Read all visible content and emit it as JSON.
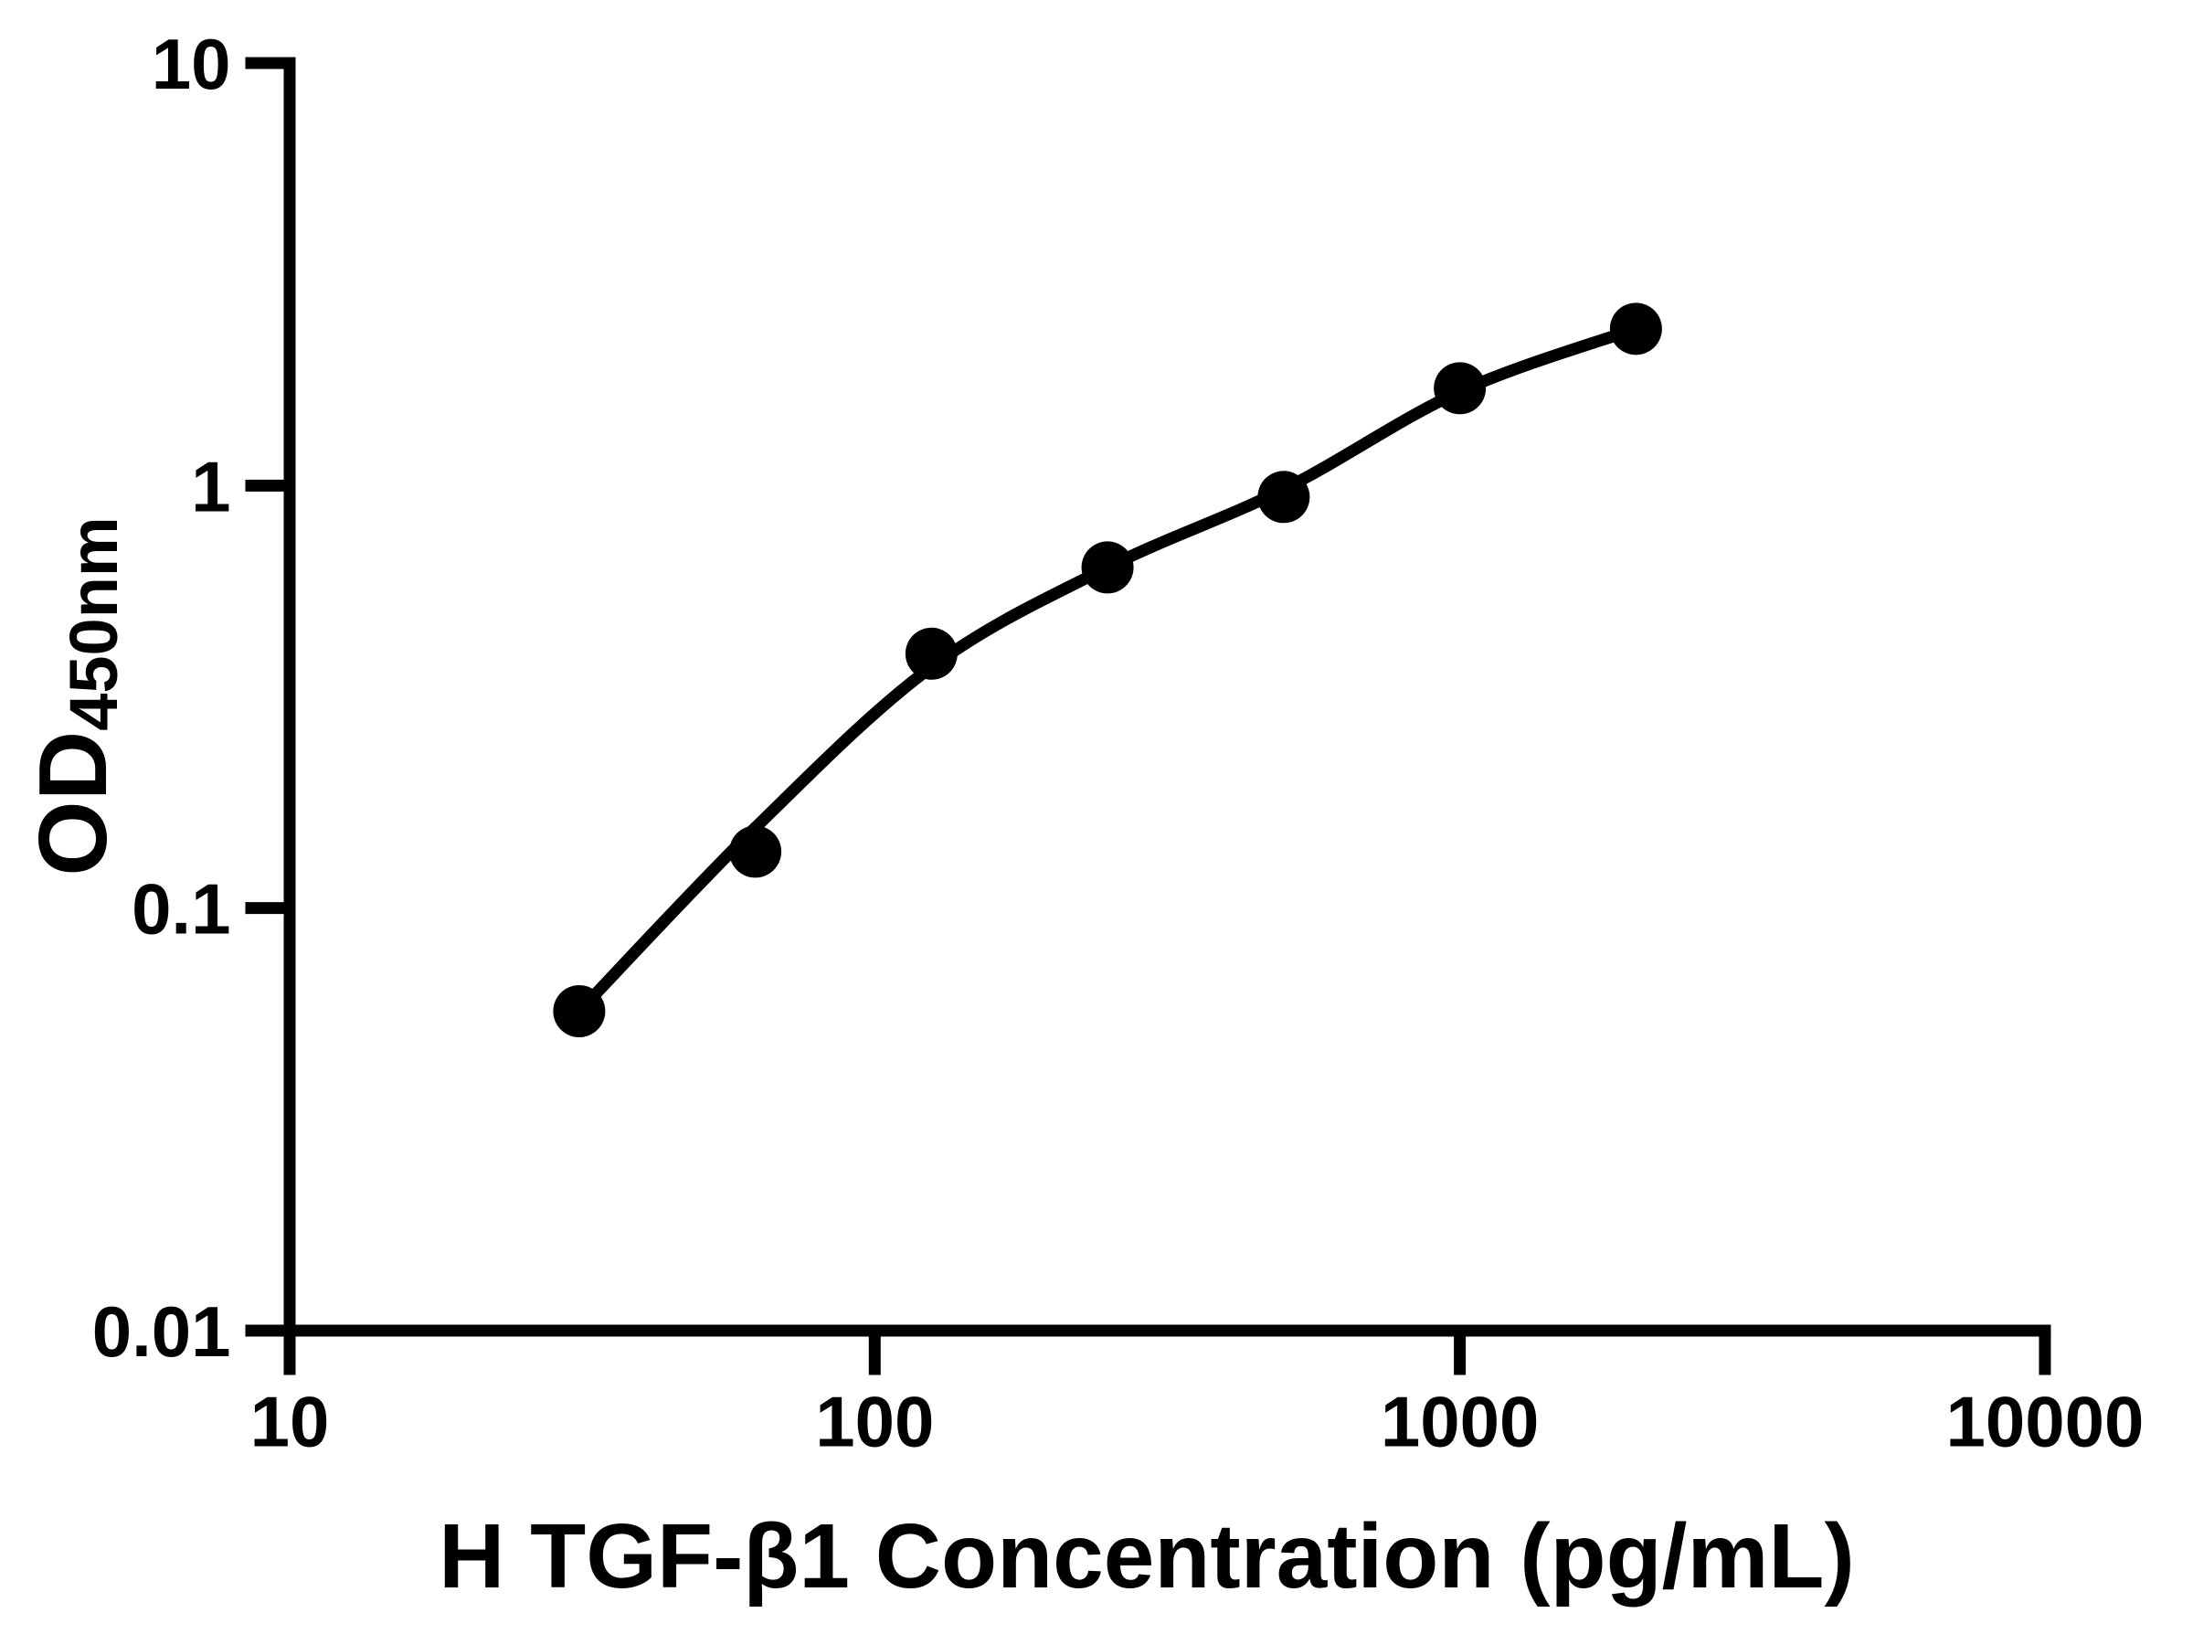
{
  "figure": {
    "background_color": "#ffffff",
    "axis_color": "#000000"
  },
  "chart_data": {
    "type": "scatter",
    "title": "",
    "xlabel": "H TGF-β1 Concentration (pg/mL)",
    "ylabel": "OD450nm",
    "ylabel_main": "OD",
    "ylabel_sub": "450nm",
    "x_scale": "log10",
    "y_scale": "log10",
    "xlim": [
      10,
      10000
    ],
    "ylim": [
      0.01,
      10
    ],
    "grid": false,
    "legend_position": "none",
    "x_ticks": [
      {
        "value": 10,
        "label": "10"
      },
      {
        "value": 100,
        "label": "100"
      },
      {
        "value": 1000,
        "label": "1000"
      },
      {
        "value": 10000,
        "label": "10000"
      }
    ],
    "y_ticks": [
      {
        "value": 10,
        "label": "10"
      },
      {
        "value": 1,
        "label": "1"
      },
      {
        "value": 0.1,
        "label": "0.1"
      },
      {
        "value": 0.01,
        "label": "0.01"
      }
    ],
    "series": [
      {
        "name": "standard-points",
        "type": "scatter",
        "marker": "filled-circle",
        "color": "#000000",
        "x": [
          31.25,
          62.5,
          125,
          250,
          500,
          1000,
          2000
        ],
        "y": [
          0.057,
          0.136,
          0.4,
          0.64,
          0.94,
          1.7,
          2.35
        ]
      },
      {
        "name": "fit-curve",
        "type": "line",
        "color": "#000000",
        "x": [
          31.25,
          62.5,
          125,
          250,
          500,
          1000,
          2000
        ],
        "y": [
          0.057,
          0.155,
          0.372,
          0.64,
          0.98,
          1.67,
          2.35
        ]
      }
    ]
  }
}
